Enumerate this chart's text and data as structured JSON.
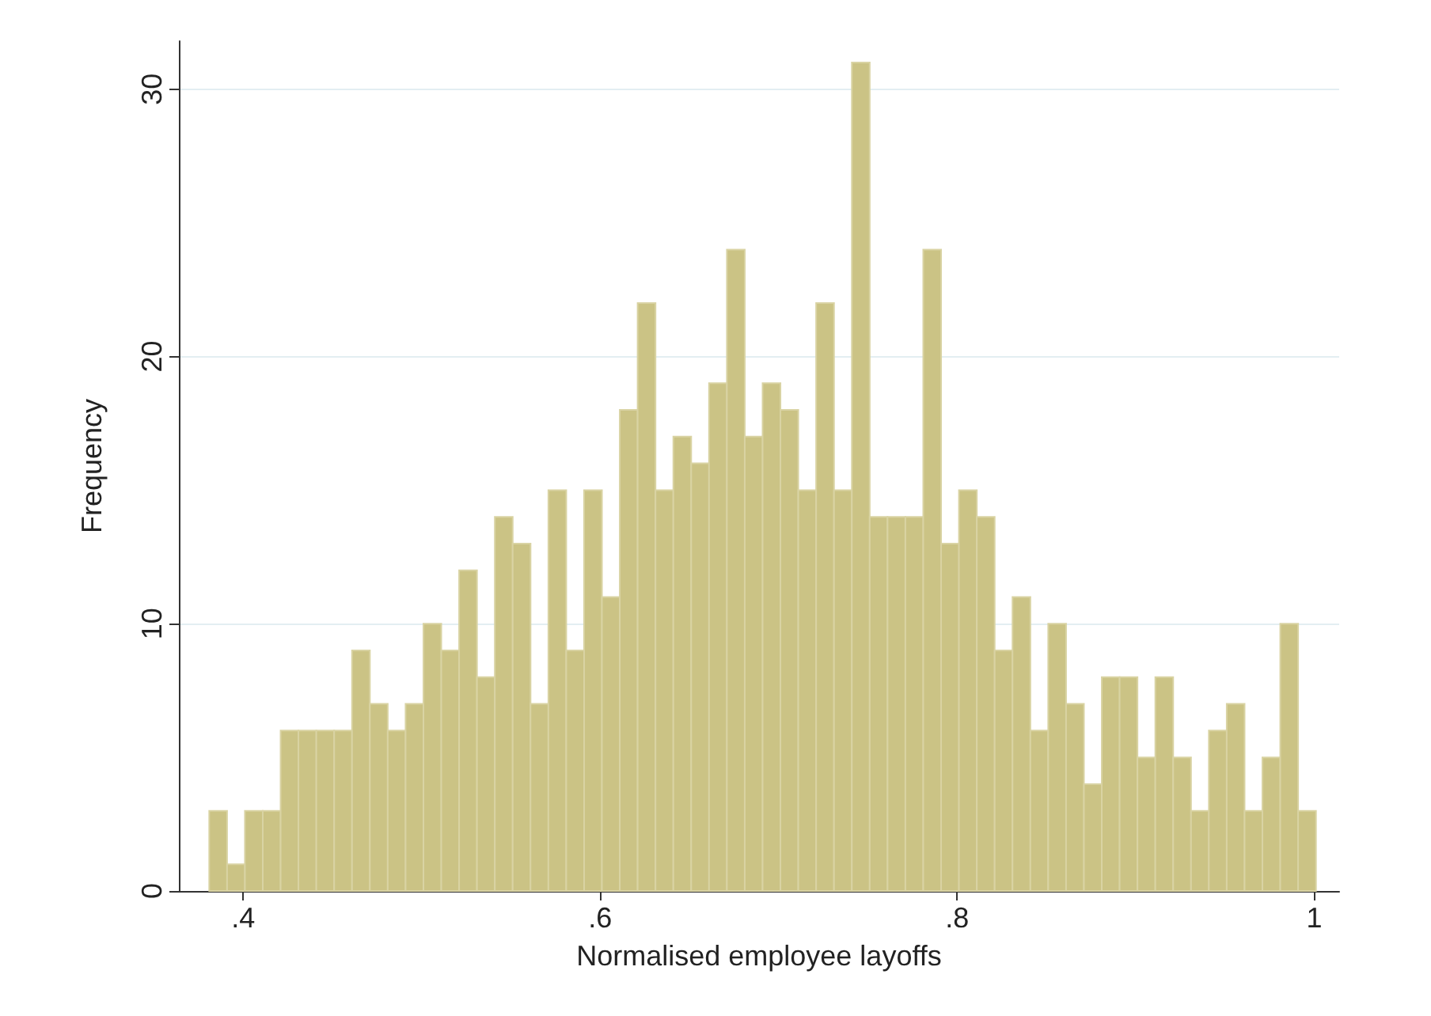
{
  "chart_data": {
    "type": "histogram",
    "xlabel": "Normalised employee layoffs",
    "ylabel": "Frequency",
    "color": "#cbc385",
    "bins": [
      0.381,
      0.391,
      0.401,
      0.411,
      0.421,
      0.431,
      0.441,
      0.451,
      0.461,
      0.471,
      0.481,
      0.491,
      0.501,
      0.511,
      0.521,
      0.531,
      0.541,
      0.551,
      0.561,
      0.571,
      0.581,
      0.591,
      0.601,
      0.611,
      0.621,
      0.631,
      0.641,
      0.651,
      0.661,
      0.671,
      0.681,
      0.691,
      0.701,
      0.711,
      0.721,
      0.731,
      0.741,
      0.751,
      0.761,
      0.771,
      0.781,
      0.791,
      0.801,
      0.811,
      0.821,
      0.831,
      0.841,
      0.851,
      0.861,
      0.871,
      0.881,
      0.891,
      0.901,
      0.911,
      0.921,
      0.931,
      0.941,
      0.951,
      0.961,
      0.971,
      0.981,
      0.991,
      1.001
    ],
    "values": [
      3,
      1,
      3,
      3,
      6,
      6,
      6,
      6,
      9,
      7,
      6,
      7,
      10,
      9,
      12,
      8,
      14,
      13,
      7,
      15,
      9,
      15,
      11,
      18,
      22,
      15,
      17,
      16,
      19,
      24,
      17,
      19,
      18,
      15,
      22,
      15,
      31,
      14,
      14,
      14,
      24,
      13,
      15,
      14,
      9,
      11,
      6,
      10,
      7,
      4,
      8,
      8,
      5,
      8,
      5,
      3,
      6,
      7,
      3,
      5,
      10,
      3
    ],
    "xlim": [
      0.364,
      1.014
    ],
    "ylim": [
      0,
      31.8
    ],
    "xticks": [
      {
        "value": 0.4,
        "label": ".4"
      },
      {
        "value": 0.6,
        "label": ".6"
      },
      {
        "value": 0.8,
        "label": ".8"
      },
      1
    ],
    "yticks": [
      0,
      10,
      20,
      30
    ],
    "grid": "y"
  }
}
